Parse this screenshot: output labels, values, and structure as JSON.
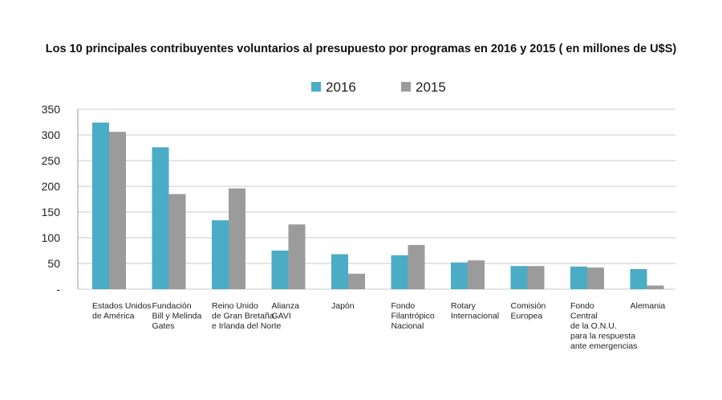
{
  "chart_data": {
    "type": "bar",
    "title": "Los 10 principales contribuyentes voluntarios al presupuesto por programas en 2016 y 2015 ( en millones de U$S)",
    "categories": [
      [
        "Estados Unidos",
        "de América"
      ],
      [
        "Fundación",
        "Bill y Melinda",
        "Gates"
      ],
      [
        "Reino Unido",
        "de Gran Bretaña",
        "e Irlanda del Norte"
      ],
      [
        "Alianza",
        "GAVI"
      ],
      [
        "Japón"
      ],
      [
        "Fondo",
        "Filantrópico",
        "Nacional"
      ],
      [
        "Rotary",
        "Internacional"
      ],
      [
        "Comisión",
        "Europea"
      ],
      [
        "Fondo",
        "Central",
        "de la O.N.U.",
        "para la respuesta",
        "ante emergencias"
      ],
      [
        "Alemania"
      ]
    ],
    "series": [
      {
        "name": "2016",
        "color": "#4bacc6",
        "values": [
          324,
          276,
          134,
          75,
          68,
          66,
          52,
          45,
          44,
          39
        ]
      },
      {
        "name": "2015",
        "color": "#9b9b9b",
        "values": [
          306,
          185,
          196,
          126,
          30,
          86,
          56,
          45,
          42,
          7
        ]
      }
    ],
    "ylim": [
      0,
      350
    ],
    "yticks": [
      0,
      50,
      100,
      150,
      200,
      250,
      300,
      350
    ],
    "ytick_labels": [
      "-",
      "50",
      "100",
      "150",
      "200",
      "250",
      "300",
      "350"
    ],
    "grid": true,
    "legend_position": "top-center"
  }
}
